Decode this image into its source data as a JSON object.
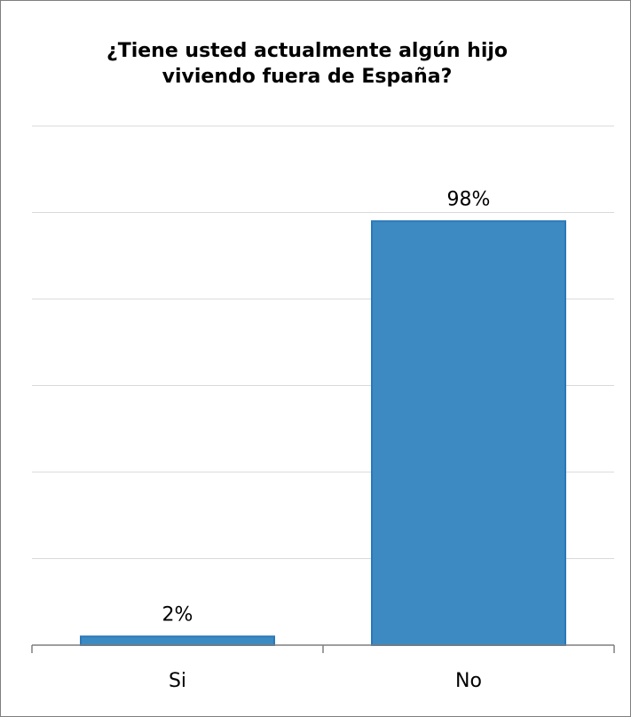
{
  "chart_data": {
    "type": "bar",
    "title": [
      "¿Tiene usted actualmente algún hijo",
      "viviendo fuera de España?"
    ],
    "categories": [
      "Si",
      "No"
    ],
    "values": [
      2,
      98
    ],
    "data_labels": [
      "2%",
      "98%"
    ],
    "ylim": [
      0,
      120
    ],
    "y_gridlines": [
      20,
      40,
      60,
      80,
      100,
      120
    ],
    "grid": true,
    "legend": "none",
    "xlabel": "",
    "ylabel": "",
    "bar_color": "#3d8ac2",
    "bar_border_color": "#2a78b8"
  }
}
